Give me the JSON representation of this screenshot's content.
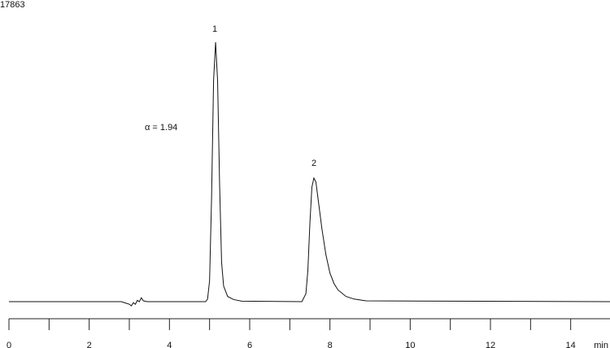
{
  "chart_data": {
    "type": "line",
    "id": "17863",
    "annotations": [
      "1",
      "2",
      "α = 1.94"
    ],
    "x_label": "min",
    "x": [
      0,
      2.8,
      2.9,
      3.0,
      3.05,
      3.1,
      3.15,
      3.2,
      3.25,
      3.3,
      3.35,
      3.45,
      4.9,
      4.95,
      5.0,
      5.05,
      5.1,
      5.15,
      5.2,
      5.25,
      5.3,
      5.35,
      5.45,
      5.6,
      5.8,
      7.3,
      7.4,
      7.45,
      7.5,
      7.55,
      7.6,
      7.65,
      7.7,
      7.8,
      7.9,
      8.0,
      8.1,
      8.2,
      8.4,
      8.6,
      8.9,
      15
    ],
    "values": [
      0,
      0,
      -0.5,
      -1,
      -1.6,
      -0.4,
      -1,
      0.5,
      0,
      1.5,
      0.3,
      0,
      0,
      1,
      8,
      40,
      85,
      99.7,
      85,
      45,
      15,
      6,
      2,
      0.8,
      0.2,
      0,
      3,
      12,
      30,
      44,
      47.5,
      46,
      40,
      28,
      18,
      11,
      7,
      4.5,
      2,
      1,
      0.3,
      0
    ],
    "color": "#111111",
    "xlim": [
      0,
      15
    ],
    "ylim": [
      0,
      100
    ],
    "xticks": [
      0,
      2,
      4,
      6,
      8,
      10,
      12,
      14
    ],
    "minor_xticks": [
      1,
      3,
      5,
      7,
      9,
      11,
      13
    ]
  }
}
